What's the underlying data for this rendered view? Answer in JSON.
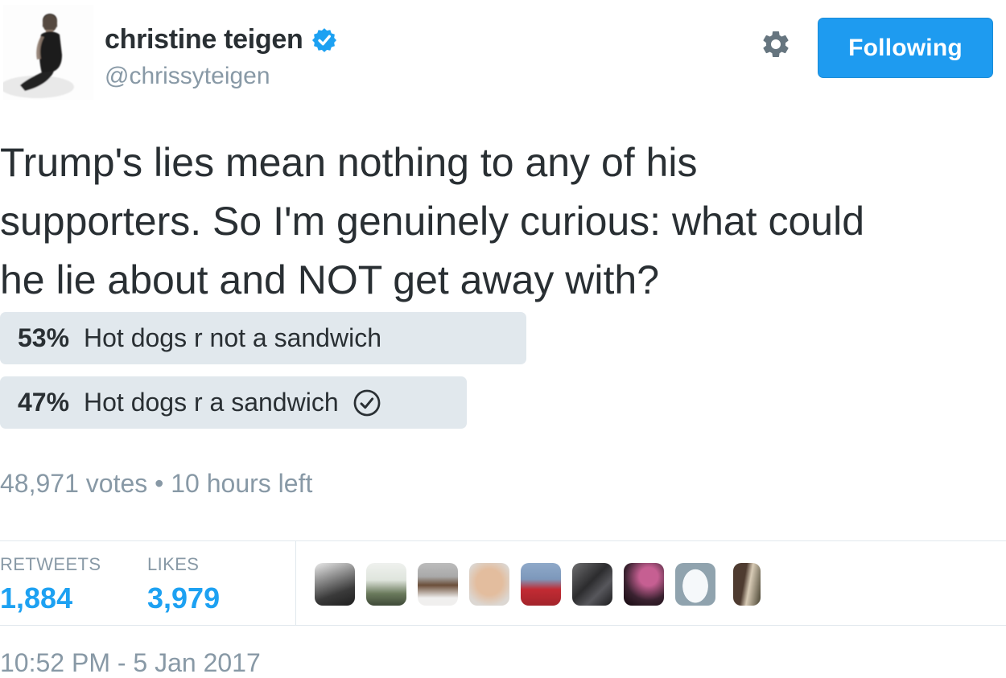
{
  "header": {
    "name": "christine teigen",
    "handle": "@chrissyteigen",
    "verified": true,
    "follow_button_label": "Following"
  },
  "tweet": {
    "text": "Trump's lies mean nothing to any of his supporters. So I'm genuinely curious: what could he lie about and NOT get away with?",
    "text_lines": [
      "Trump's lies mean nothing to any of his",
      "supporters. So I'm genuinely curious: what could",
      "he lie about and NOT get away with?"
    ]
  },
  "poll": {
    "options": [
      {
        "percent": "53%",
        "label": "Hot dogs r not a sandwich",
        "value": 53,
        "voted": false
      },
      {
        "percent": "47%",
        "label": "Hot dogs r a sandwich",
        "value": 47,
        "voted": true
      }
    ],
    "votes_summary": "48,971 votes • 10 hours left"
  },
  "stats": {
    "retweets_label": "RETWEETS",
    "retweets_count": "1,884",
    "likes_label": "LIKES",
    "likes_count": "3,979"
  },
  "likers": [
    "bw-portrait-avatar",
    "person-holding-plant-avatar",
    "man-white-shirt-avatar",
    "smiling-face-glasses-avatar",
    "red-hoodie-stadium-avatar",
    "bw-dark-photo-avatar",
    "pink-flower-dark-avatar",
    "default-egg-avatar",
    "two-people-avatar"
  ],
  "timestamp": "10:52 PM - 5 Jan 2017",
  "colors": {
    "accent_blue": "#1da1f2",
    "button_blue": "#1e9bf0",
    "poll_bar_gray": "#e1e8ed",
    "muted_gray": "#8899a6",
    "dark_text": "#292f33"
  }
}
